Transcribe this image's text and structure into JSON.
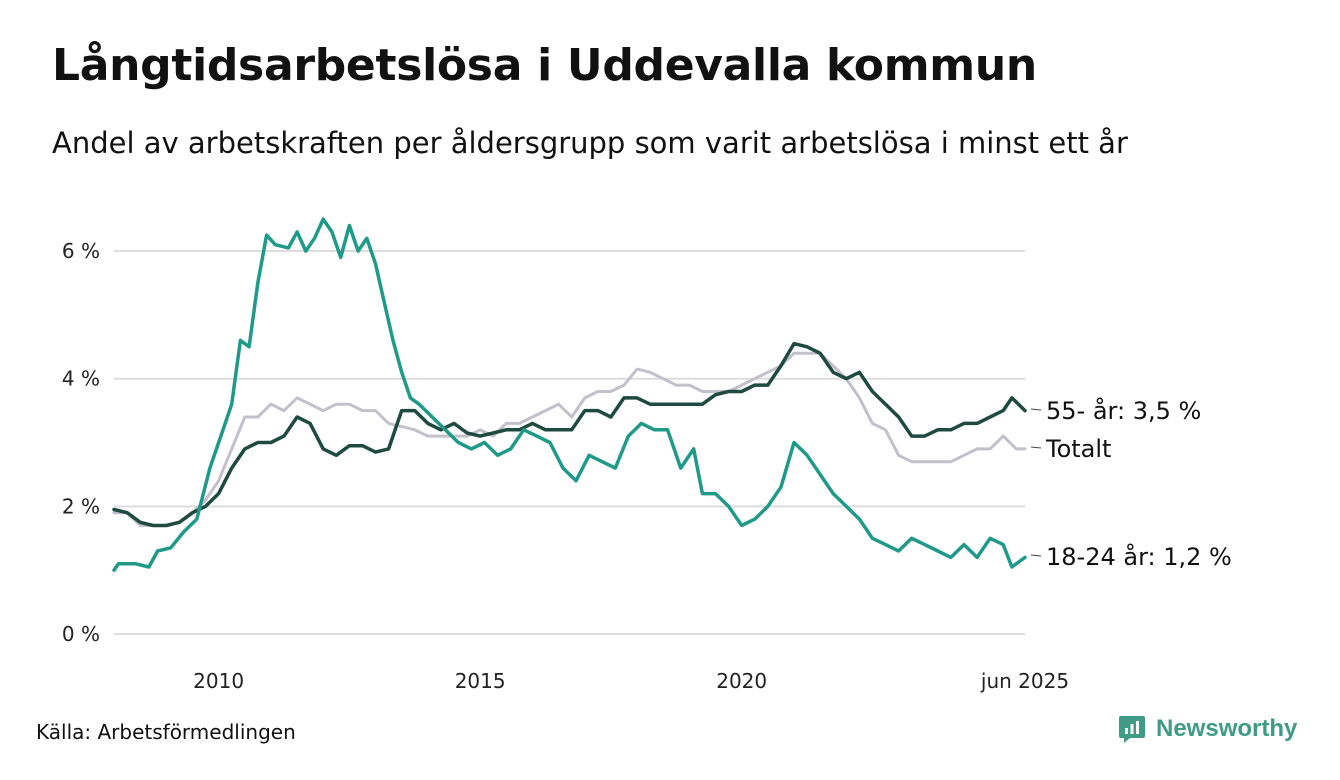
{
  "title": "Långtidsarbetslösa i Uddevalla kommun",
  "subtitle": "Andel av arbetskraften per åldersgrupp som varit arbetslösa i minst ett år",
  "source": "Källa: Arbetsförmedlingen",
  "brand": "Newsworthy",
  "colors": {
    "youth": "#1f9a88",
    "senior": "#1f4a3f",
    "total": "#c3c0cc",
    "grid": "#dddddd",
    "brand": "#3f9a86"
  },
  "chart_data": {
    "type": "line",
    "xlim": [
      "2008-01",
      "2025-06"
    ],
    "ylim": [
      0,
      6.8
    ],
    "yticks": [
      0,
      2,
      4,
      6
    ],
    "ytick_labels": [
      "0 %",
      "2 %",
      "4 %",
      "6 %"
    ],
    "xticks": [
      "2010-01",
      "2015-01",
      "2020-01",
      "2025-06"
    ],
    "xtick_labels": [
      "2010",
      "2015",
      "2020",
      "jun 2025"
    ],
    "grid": "horizontal",
    "series": [
      {
        "key": "total",
        "name": "Totalt",
        "label": "Totalt",
        "points": [
          [
            "2008-01",
            1.9
          ],
          [
            "2008-04",
            1.9
          ],
          [
            "2008-07",
            1.7
          ],
          [
            "2008-10",
            1.7
          ],
          [
            "2009-01",
            1.7
          ],
          [
            "2009-04",
            1.75
          ],
          [
            "2009-07",
            1.9
          ],
          [
            "2009-10",
            2.1
          ],
          [
            "2010-01",
            2.4
          ],
          [
            "2010-04",
            2.9
          ],
          [
            "2010-07",
            3.4
          ],
          [
            "2010-10",
            3.4
          ],
          [
            "2011-01",
            3.6
          ],
          [
            "2011-04",
            3.5
          ],
          [
            "2011-07",
            3.7
          ],
          [
            "2011-10",
            3.6
          ],
          [
            "2012-01",
            3.5
          ],
          [
            "2012-04",
            3.6
          ],
          [
            "2012-07",
            3.6
          ],
          [
            "2012-10",
            3.5
          ],
          [
            "2013-01",
            3.5
          ],
          [
            "2013-04",
            3.3
          ],
          [
            "2013-07",
            3.25
          ],
          [
            "2013-10",
            3.2
          ],
          [
            "2014-01",
            3.1
          ],
          [
            "2014-04",
            3.1
          ],
          [
            "2014-07",
            3.1
          ],
          [
            "2014-10",
            3.1
          ],
          [
            "2015-01",
            3.2
          ],
          [
            "2015-04",
            3.1
          ],
          [
            "2015-07",
            3.3
          ],
          [
            "2015-10",
            3.3
          ],
          [
            "2016-01",
            3.4
          ],
          [
            "2016-04",
            3.5
          ],
          [
            "2016-07",
            3.6
          ],
          [
            "2016-10",
            3.4
          ],
          [
            "2017-01",
            3.7
          ],
          [
            "2017-04",
            3.8
          ],
          [
            "2017-07",
            3.8
          ],
          [
            "2017-10",
            3.9
          ],
          [
            "2018-01",
            4.15
          ],
          [
            "2018-04",
            4.1
          ],
          [
            "2018-07",
            4.0
          ],
          [
            "2018-10",
            3.9
          ],
          [
            "2019-01",
            3.9
          ],
          [
            "2019-04",
            3.8
          ],
          [
            "2019-07",
            3.8
          ],
          [
            "2019-10",
            3.8
          ],
          [
            "2020-01",
            3.9
          ],
          [
            "2020-04",
            4.0
          ],
          [
            "2020-07",
            4.1
          ],
          [
            "2020-10",
            4.2
          ],
          [
            "2021-01",
            4.4
          ],
          [
            "2021-04",
            4.4
          ],
          [
            "2021-07",
            4.4
          ],
          [
            "2021-10",
            4.2
          ],
          [
            "2022-01",
            4.0
          ],
          [
            "2022-04",
            3.7
          ],
          [
            "2022-07",
            3.3
          ],
          [
            "2022-10",
            3.2
          ],
          [
            "2023-01",
            2.8
          ],
          [
            "2023-04",
            2.7
          ],
          [
            "2023-07",
            2.7
          ],
          [
            "2023-10",
            2.7
          ],
          [
            "2024-01",
            2.7
          ],
          [
            "2024-04",
            2.8
          ],
          [
            "2024-07",
            2.9
          ],
          [
            "2024-10",
            2.9
          ],
          [
            "2025-01",
            3.1
          ],
          [
            "2025-04",
            2.9
          ],
          [
            "2025-06",
            2.9
          ]
        ]
      },
      {
        "key": "senior",
        "name": "55- år",
        "label": "55- år: 3,5 %",
        "points": [
          [
            "2008-01",
            1.95
          ],
          [
            "2008-04",
            1.9
          ],
          [
            "2008-07",
            1.75
          ],
          [
            "2008-10",
            1.7
          ],
          [
            "2009-01",
            1.7
          ],
          [
            "2009-04",
            1.75
          ],
          [
            "2009-07",
            1.9
          ],
          [
            "2009-10",
            2.0
          ],
          [
            "2010-01",
            2.2
          ],
          [
            "2010-04",
            2.6
          ],
          [
            "2010-07",
            2.9
          ],
          [
            "2010-10",
            3.0
          ],
          [
            "2011-01",
            3.0
          ],
          [
            "2011-04",
            3.1
          ],
          [
            "2011-07",
            3.4
          ],
          [
            "2011-10",
            3.3
          ],
          [
            "2012-01",
            2.9
          ],
          [
            "2012-04",
            2.8
          ],
          [
            "2012-07",
            2.95
          ],
          [
            "2012-10",
            2.95
          ],
          [
            "2013-01",
            2.85
          ],
          [
            "2013-04",
            2.9
          ],
          [
            "2013-07",
            3.5
          ],
          [
            "2013-10",
            3.5
          ],
          [
            "2014-01",
            3.3
          ],
          [
            "2014-04",
            3.2
          ],
          [
            "2014-07",
            3.3
          ],
          [
            "2014-10",
            3.15
          ],
          [
            "2015-01",
            3.1
          ],
          [
            "2015-04",
            3.15
          ],
          [
            "2015-07",
            3.2
          ],
          [
            "2015-10",
            3.2
          ],
          [
            "2016-01",
            3.3
          ],
          [
            "2016-04",
            3.2
          ],
          [
            "2016-07",
            3.2
          ],
          [
            "2016-10",
            3.2
          ],
          [
            "2017-01",
            3.5
          ],
          [
            "2017-04",
            3.5
          ],
          [
            "2017-07",
            3.4
          ],
          [
            "2017-10",
            3.7
          ],
          [
            "2018-01",
            3.7
          ],
          [
            "2018-04",
            3.6
          ],
          [
            "2018-07",
            3.6
          ],
          [
            "2018-10",
            3.6
          ],
          [
            "2019-01",
            3.6
          ],
          [
            "2019-04",
            3.6
          ],
          [
            "2019-07",
            3.75
          ],
          [
            "2019-10",
            3.8
          ],
          [
            "2020-01",
            3.8
          ],
          [
            "2020-04",
            3.9
          ],
          [
            "2020-07",
            3.9
          ],
          [
            "2020-10",
            4.2
          ],
          [
            "2021-01",
            4.55
          ],
          [
            "2021-04",
            4.5
          ],
          [
            "2021-07",
            4.4
          ],
          [
            "2021-10",
            4.1
          ],
          [
            "2022-01",
            4.0
          ],
          [
            "2022-04",
            4.1
          ],
          [
            "2022-07",
            3.8
          ],
          [
            "2022-10",
            3.6
          ],
          [
            "2023-01",
            3.4
          ],
          [
            "2023-04",
            3.1
          ],
          [
            "2023-07",
            3.1
          ],
          [
            "2023-10",
            3.2
          ],
          [
            "2024-01",
            3.2
          ],
          [
            "2024-04",
            3.3
          ],
          [
            "2024-07",
            3.3
          ],
          [
            "2024-10",
            3.4
          ],
          [
            "2025-01",
            3.5
          ],
          [
            "2025-03",
            3.7
          ],
          [
            "2025-06",
            3.5
          ]
        ]
      },
      {
        "key": "youth",
        "name": "18-24 år",
        "label": "18-24 år: 1,2 %",
        "points": [
          [
            "2008-01",
            1.0
          ],
          [
            "2008-02",
            1.1
          ],
          [
            "2008-06",
            1.1
          ],
          [
            "2008-09",
            1.05
          ],
          [
            "2008-11",
            1.3
          ],
          [
            "2009-02",
            1.35
          ],
          [
            "2009-05",
            1.6
          ],
          [
            "2009-08",
            1.8
          ],
          [
            "2009-11",
            2.6
          ],
          [
            "2010-02",
            3.2
          ],
          [
            "2010-04",
            3.6
          ],
          [
            "2010-06",
            4.6
          ],
          [
            "2010-08",
            4.5
          ],
          [
            "2010-10",
            5.5
          ],
          [
            "2010-12",
            6.25
          ],
          [
            "2011-02",
            6.1
          ],
          [
            "2011-05",
            6.05
          ],
          [
            "2011-07",
            6.3
          ],
          [
            "2011-09",
            6.0
          ],
          [
            "2011-11",
            6.2
          ],
          [
            "2012-01",
            6.5
          ],
          [
            "2012-03",
            6.3
          ],
          [
            "2012-05",
            5.9
          ],
          [
            "2012-07",
            6.4
          ],
          [
            "2012-09",
            6.0
          ],
          [
            "2012-11",
            6.2
          ],
          [
            "2013-01",
            5.8
          ],
          [
            "2013-03",
            5.2
          ],
          [
            "2013-05",
            4.6
          ],
          [
            "2013-07",
            4.1
          ],
          [
            "2013-09",
            3.7
          ],
          [
            "2013-11",
            3.6
          ],
          [
            "2014-02",
            3.4
          ],
          [
            "2014-05",
            3.2
          ],
          [
            "2014-08",
            3.0
          ],
          [
            "2014-11",
            2.9
          ],
          [
            "2015-02",
            3.0
          ],
          [
            "2015-05",
            2.8
          ],
          [
            "2015-08",
            2.9
          ],
          [
            "2015-11",
            3.2
          ],
          [
            "2016-02",
            3.1
          ],
          [
            "2016-05",
            3.0
          ],
          [
            "2016-08",
            2.6
          ],
          [
            "2016-11",
            2.4
          ],
          [
            "2017-02",
            2.8
          ],
          [
            "2017-05",
            2.7
          ],
          [
            "2017-08",
            2.6
          ],
          [
            "2017-11",
            3.1
          ],
          [
            "2018-02",
            3.3
          ],
          [
            "2018-05",
            3.2
          ],
          [
            "2018-08",
            3.2
          ],
          [
            "2018-11",
            2.6
          ],
          [
            "2019-02",
            2.9
          ],
          [
            "2019-04",
            2.2
          ],
          [
            "2019-07",
            2.2
          ],
          [
            "2019-10",
            2.0
          ],
          [
            "2020-01",
            1.7
          ],
          [
            "2020-04",
            1.8
          ],
          [
            "2020-07",
            2.0
          ],
          [
            "2020-10",
            2.3
          ],
          [
            "2021-01",
            3.0
          ],
          [
            "2021-04",
            2.8
          ],
          [
            "2021-07",
            2.5
          ],
          [
            "2021-10",
            2.2
          ],
          [
            "2022-01",
            2.0
          ],
          [
            "2022-04",
            1.8
          ],
          [
            "2022-07",
            1.5
          ],
          [
            "2022-10",
            1.4
          ],
          [
            "2023-01",
            1.3
          ],
          [
            "2023-04",
            1.5
          ],
          [
            "2023-07",
            1.4
          ],
          [
            "2023-10",
            1.3
          ],
          [
            "2024-01",
            1.2
          ],
          [
            "2024-04",
            1.4
          ],
          [
            "2024-07",
            1.2
          ],
          [
            "2024-10",
            1.5
          ],
          [
            "2025-01",
            1.4
          ],
          [
            "2025-03",
            1.05
          ],
          [
            "2025-06",
            1.2
          ]
        ]
      }
    ]
  }
}
